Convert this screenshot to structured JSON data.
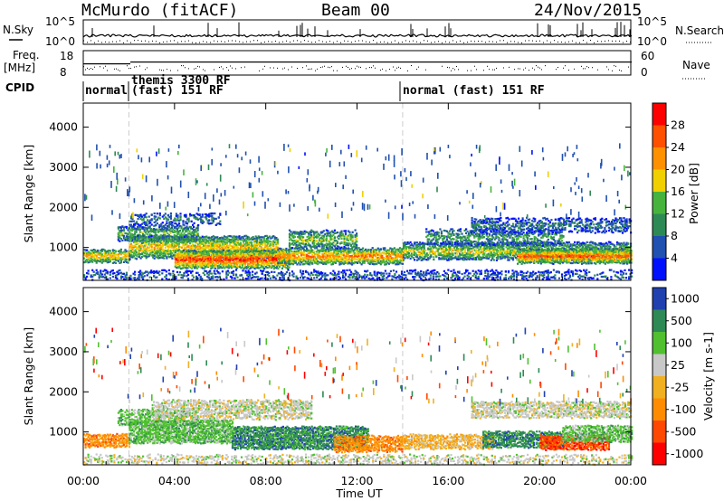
{
  "header": {
    "title_left": "McMurdo (fitACF)",
    "title_center": "Beam 00",
    "title_right": "24/Nov/2015"
  },
  "left_labels": {
    "nsky": "N.Sky",
    "freq": "Freq.",
    "freq_unit": "[MHz]",
    "cpid": "CPID",
    "nsky_ticks": [
      "10^5",
      "10^0"
    ],
    "freq_ticks": [
      "18",
      "8"
    ]
  },
  "right_labels": {
    "nsearch": "N.Search",
    "nave": "Nave",
    "nsearch_ticks": [
      "10^5",
      "10^0"
    ],
    "nave_ticks": [
      "60",
      "0"
    ]
  },
  "modes": [
    {
      "label": "normal",
      "start_hour": 0
    },
    {
      "label": "themis 3300 RF",
      "start_hour": 2
    },
    {
      "label": "(fast) 151 RF",
      "start_hour": 2
    },
    {
      "label": "normal (fast) 151 RF",
      "start_hour": 14
    }
  ],
  "colors": {
    "power": [
      "#0010ff",
      "#2050b0",
      "#2e8a55",
      "#46b43c",
      "#f0d000",
      "#ff9000",
      "#ff5000",
      "#ff0000"
    ],
    "velocity": [
      "#ff0000",
      "#ff4800",
      "#ff8c00",
      "#f0b020",
      "#c8c8c8",
      "#50c030",
      "#2e8a55",
      "#2040b0"
    ],
    "ground_scatter": "#b4b4b4"
  },
  "chart_data": [
    {
      "type": "heatmap",
      "name": "Power panel",
      "xlabel": "Time UT",
      "ylabel": "Slant Range [km]",
      "x_range_hours": [
        0,
        24
      ],
      "ylim": [
        180,
        4600
      ],
      "ytick_labels": [
        "1000",
        "2000",
        "3000",
        "4000"
      ],
      "colorbar": {
        "label": "Power [dB]",
        "ticks": [
          "4",
          "8",
          "12",
          "16",
          "20",
          "24",
          "28"
        ],
        "range": [
          0,
          32
        ]
      },
      "bands": [
        {
          "t0": 0.0,
          "t1": 2.0,
          "r_center": 780,
          "r_halfwidth": 140,
          "value_peak": 22,
          "density": 0.8
        },
        {
          "t0": 1.5,
          "t1": 5.0,
          "r_center": 1350,
          "r_halfwidth": 180,
          "value_peak": 14,
          "density": 0.65
        },
        {
          "t0": 2.0,
          "t1": 8.5,
          "r_center": 1000,
          "r_halfwidth": 260,
          "value_peak": 20,
          "density": 0.85
        },
        {
          "t0": 4.0,
          "t1": 9.0,
          "r_center": 700,
          "r_halfwidth": 200,
          "value_peak": 28,
          "density": 0.95
        },
        {
          "t0": 8.5,
          "t1": 14.0,
          "r_center": 780,
          "r_halfwidth": 180,
          "value_peak": 24,
          "density": 0.85
        },
        {
          "t0": 9.0,
          "t1": 12.0,
          "r_center": 1200,
          "r_halfwidth": 200,
          "value_peak": 16,
          "density": 0.6
        },
        {
          "t0": 2.0,
          "t1": 6.0,
          "r_center": 1700,
          "r_halfwidth": 120,
          "value_peak": 10,
          "density": 0.45
        },
        {
          "t0": 14.0,
          "t1": 24.0,
          "r_center": 900,
          "r_halfwidth": 190,
          "value_peak": 18,
          "density": 0.75
        },
        {
          "t0": 15.0,
          "t1": 21.0,
          "r_center": 1250,
          "r_halfwidth": 180,
          "value_peak": 12,
          "density": 0.5
        },
        {
          "t0": 19.0,
          "t1": 24.0,
          "r_center": 780,
          "r_halfwidth": 160,
          "value_peak": 26,
          "density": 0.9
        },
        {
          "t0": 17.0,
          "t1": 24.0,
          "r_center": 1550,
          "r_halfwidth": 160,
          "value_peak": 9,
          "density": 0.55
        },
        {
          "t0": 0.0,
          "t1": 24.0,
          "r_center": 300,
          "r_halfwidth": 90,
          "value_peak": 8,
          "density": 0.35
        }
      ]
    },
    {
      "type": "heatmap",
      "name": "Velocity panel",
      "xlabel": "Time UT",
      "ylabel": "Slant Range [km]",
      "x_range_hours": [
        0,
        24
      ],
      "ylim": [
        180,
        4600
      ],
      "ytick_labels": [
        "1000",
        "2000",
        "3000",
        "4000"
      ],
      "xtick_labels": [
        "00:00",
        "04:00",
        "08:00",
        "12:00",
        "16:00",
        "20:00",
        "00:00"
      ],
      "colorbar": {
        "label": "Velocity [m s-1]",
        "ticks": [
          "1000",
          "500",
          "100",
          "25",
          "-25",
          "-100",
          "-500",
          "-1000"
        ]
      },
      "bands": [
        {
          "t0": 0.0,
          "t1": 2.0,
          "r_center": 780,
          "r_halfwidth": 140,
          "class": 2,
          "density": 0.8
        },
        {
          "t0": 1.5,
          "t1": 5.0,
          "r_center": 1350,
          "r_halfwidth": 180,
          "class": 5,
          "density": 0.55
        },
        {
          "t0": 2.0,
          "t1": 6.5,
          "r_center": 1000,
          "r_halfwidth": 260,
          "class": 5,
          "density": 0.85
        },
        {
          "t0": 6.5,
          "t1": 12.5,
          "r_center": 850,
          "r_halfwidth": 260,
          "class": 6,
          "density": 0.9
        },
        {
          "t0": 3.0,
          "t1": 10.0,
          "r_center": 1550,
          "r_halfwidth": 220,
          "class": 4,
          "density": 0.6
        },
        {
          "t0": 11.0,
          "t1": 14.0,
          "r_center": 700,
          "r_halfwidth": 180,
          "class": 2,
          "density": 0.75
        },
        {
          "t0": 14.0,
          "t1": 18.0,
          "r_center": 750,
          "r_halfwidth": 160,
          "class": 3,
          "density": 0.7
        },
        {
          "t0": 17.5,
          "t1": 21.0,
          "r_center": 800,
          "r_halfwidth": 170,
          "class": 6,
          "density": 0.8
        },
        {
          "t0": 20.0,
          "t1": 23.0,
          "r_center": 730,
          "r_halfwidth": 160,
          "class": 1,
          "density": 0.85
        },
        {
          "t0": 21.0,
          "t1": 24.0,
          "r_center": 950,
          "r_halfwidth": 180,
          "class": 5,
          "density": 0.8
        },
        {
          "t0": 17.0,
          "t1": 24.0,
          "r_center": 1550,
          "r_halfwidth": 180,
          "class": 4,
          "density": 0.65
        },
        {
          "t0": 0.0,
          "t1": 24.0,
          "r_center": 300,
          "r_halfwidth": 90,
          "class": 4,
          "density": 0.35
        }
      ]
    }
  ]
}
